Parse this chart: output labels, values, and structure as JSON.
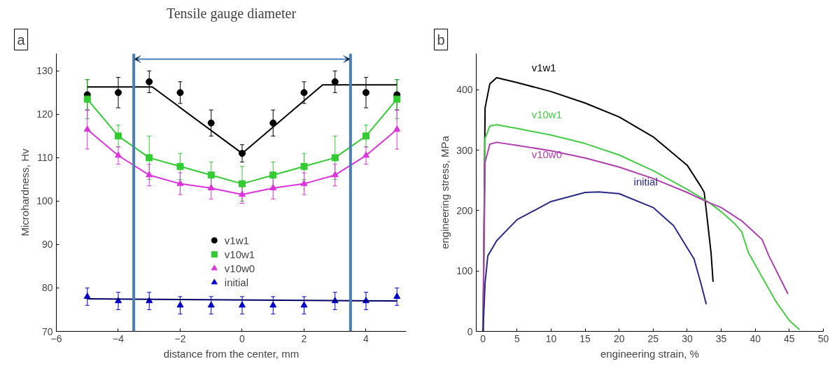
{
  "chart_data": [
    {
      "type": "scatter",
      "xlabel": "distance from the center, mm",
      "ylabel": "Microhardness, Hv",
      "xlim": [
        -6,
        5.3
      ],
      "ylim": [
        70,
        134
      ],
      "xticks": [
        -6,
        -4,
        -2,
        0,
        2,
        4
      ],
      "yticks": [
        70,
        80,
        90,
        100,
        110,
        120,
        130
      ],
      "grid": false,
      "legend": "bottom",
      "annotations": [
        "a",
        "Tensile gauge diameter"
      ],
      "ref_lines": [
        {
          "axis": "x",
          "value": -3.5,
          "color": "#4a7ebb"
        },
        {
          "axis": "x",
          "value": 3.5,
          "color": "#4a7ebb"
        }
      ],
      "x": [
        -5,
        -4,
        -3,
        -2,
        -1,
        0,
        1,
        2,
        3,
        4,
        5
      ],
      "series": [
        {
          "name": "v1w1",
          "type": "scatter",
          "marker": "circle",
          "color": "#000000",
          "values": [
            124.5,
            125,
            127.5,
            125,
            118,
            111,
            118,
            125,
            127.5,
            125,
            124.5
          ],
          "errors": [
            3.5,
            3.5,
            2.5,
            2.5,
            3,
            2,
            3,
            2.5,
            2.5,
            3.5,
            3.5
          ]
        },
        {
          "name": "v10w1",
          "type": "line",
          "marker": "square",
          "color": "#33cc33",
          "values": [
            123.5,
            115,
            110,
            108,
            106,
            104,
            106,
            108,
            110,
            115,
            123.5
          ],
          "errors": [
            4.5,
            2.5,
            5,
            3,
            3,
            4,
            3,
            3,
            5,
            2.5,
            4.5
          ]
        },
        {
          "name": "v10w0",
          "type": "line",
          "marker": "triangle",
          "color": "#dd33dd",
          "values": [
            116.5,
            110.5,
            106,
            104,
            103,
            101.5,
            103,
            104,
            106,
            110.5,
            116.5
          ],
          "errors": [
            4.5,
            2,
            2.5,
            2.5,
            2.5,
            2,
            2.5,
            2.5,
            2.5,
            2,
            4.5
          ]
        },
        {
          "name": "initial",
          "type": "scatter",
          "marker": "triangle",
          "color": "#0000cc",
          "values": [
            78,
            77,
            77,
            76,
            76,
            76,
            76,
            76,
            77,
            77,
            78
          ],
          "errors": [
            2,
            2,
            2,
            2,
            2,
            2,
            2,
            2,
            2,
            2,
            2
          ]
        },
        {
          "type": "line",
          "marker": "none",
          "color": "#000000",
          "x": [
            -5,
            -2.9,
            0,
            2.6,
            5
          ],
          "values": [
            126.3,
            126.3,
            111,
            126.8,
            126.8
          ]
        },
        {
          "type": "line",
          "marker": "none",
          "color": "#000066",
          "x": [
            -5,
            5
          ],
          "values": [
            77.5,
            77
          ]
        }
      ]
    },
    {
      "type": "line",
      "xlabel": "engineering strain, %",
      "ylabel": "engineering stress, MPa",
      "xlim": [
        -1,
        50
      ],
      "ylim": [
        0,
        460
      ],
      "xticks": [
        0,
        5,
        10,
        15,
        20,
        25,
        30,
        35,
        40,
        45,
        50
      ],
      "yticks": [
        0,
        100,
        200,
        300,
        400
      ],
      "grid": false,
      "legend": false,
      "marker": "none",
      "annotations": [
        "b"
      ],
      "series": [
        {
          "name": "v1w1",
          "color": "#000000",
          "x": [
            0,
            0.3,
            1,
            2,
            5,
            10,
            15,
            20,
            25,
            30,
            32,
            32.5,
            33,
            33.5,
            33.8
          ],
          "values": [
            0,
            370,
            410,
            420,
            412,
            397,
            378,
            355,
            322,
            275,
            240,
            230,
            180,
            130,
            82
          ]
        },
        {
          "name": "v10w1",
          "color": "#44cc44",
          "x": [
            0,
            0.3,
            1,
            2,
            5,
            10,
            15,
            20,
            25,
            30,
            33,
            35,
            37,
            38,
            39,
            41,
            43,
            45,
            46.5
          ],
          "values": [
            0,
            320,
            340,
            342,
            336,
            325,
            311,
            292,
            266,
            235,
            215,
            198,
            178,
            165,
            130,
            90,
            50,
            18,
            3
          ]
        },
        {
          "name": "v10w0",
          "color": "#b040b0",
          "x": [
            0,
            0.3,
            1,
            2,
            5,
            10,
            15,
            20,
            25,
            30,
            33,
            35,
            38,
            41,
            42,
            44,
            44.8
          ],
          "values": [
            0,
            280,
            310,
            313,
            308,
            299,
            287,
            272,
            253,
            230,
            214,
            205,
            183,
            152,
            125,
            80,
            62
          ]
        },
        {
          "name": "initial",
          "color": "#2a2a8a",
          "x": [
            0,
            0.3,
            0.7,
            2,
            5,
            10,
            15,
            17,
            20,
            25,
            28,
            31,
            32,
            32.8
          ],
          "values": [
            0,
            80,
            125,
            150,
            185,
            215,
            230,
            231,
            228,
            205,
            175,
            120,
            80,
            45
          ]
        }
      ]
    }
  ]
}
